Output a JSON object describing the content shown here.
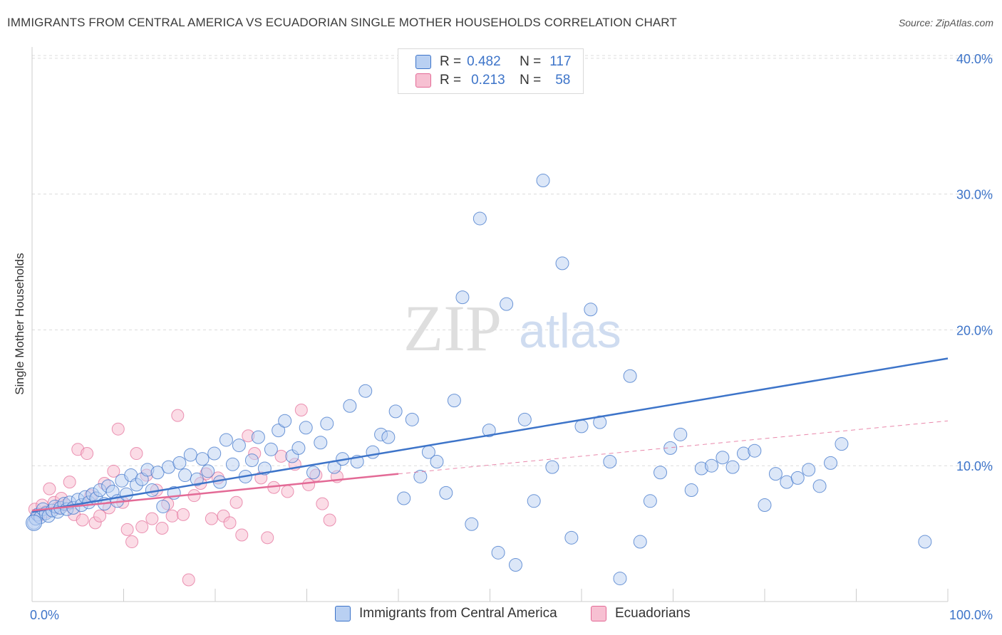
{
  "title": "IMMIGRANTS FROM CENTRAL AMERICA VS ECUADORIAN SINGLE MOTHER HOUSEHOLDS CORRELATION CHART",
  "source": "Source: ZipAtlas.com",
  "watermark": {
    "zip": "ZIP",
    "atlas": "atlas"
  },
  "colors": {
    "blue": "#3d74c9",
    "blue_fill": "#b9d0f2",
    "pink": "#e36a96",
    "pink_fill": "#f7c0d2",
    "grid": "#dcdcdc"
  },
  "legend": {
    "rows": [
      {
        "r_label": "R =",
        "r_value": "0.482",
        "n_label": "N =",
        "n_value": "117"
      },
      {
        "r_label": "R =",
        "r_value": "0.213",
        "n_label": "N =",
        "n_value": "58"
      }
    ]
  },
  "bottom_legend": {
    "series1": "Immigrants from Central America",
    "series2": "Ecuadorians"
  },
  "chart_data": {
    "type": "scatter",
    "title": "IMMIGRANTS FROM CENTRAL AMERICA VS ECUADORIAN SINGLE MOTHER HOUSEHOLDS CORRELATION CHART",
    "xlabel": "",
    "ylabel": "Single Mother Households",
    "xlim": [
      0,
      100
    ],
    "ylim": [
      0,
      40
    ],
    "x_tick_labels": [
      "0.0%",
      "100.0%"
    ],
    "y_ticks": [
      10,
      20,
      30,
      40
    ],
    "y_tick_labels": [
      "10.0%",
      "20.0%",
      "30.0%",
      "40.0%"
    ],
    "grid": true,
    "legend_position": "top-center",
    "series": [
      {
        "name": "Immigrants from Central America",
        "color": "#3d74c9",
        "trend": {
          "x": [
            0,
            100
          ],
          "y": [
            6.6,
            17.9
          ]
        },
        "x": [
          0.2,
          0.4,
          0.6,
          0.9,
          1.2,
          1.5,
          1.8,
          2.2,
          2.5,
          2.8,
          3.1,
          3.5,
          3.8,
          4.1,
          4.5,
          5.0,
          5.4,
          5.8,
          6.2,
          6.6,
          7.0,
          7.4,
          7.9,
          8.3,
          8.8,
          9.3,
          9.8,
          10.3,
          10.8,
          11.4,
          12.0,
          12.6,
          13.1,
          13.7,
          14.3,
          14.9,
          15.5,
          16.1,
          16.7,
          17.3,
          18.0,
          18.6,
          19.2,
          19.9,
          20.5,
          21.2,
          21.9,
          22.6,
          23.3,
          24.0,
          24.7,
          25.4,
          26.1,
          26.9,
          27.6,
          28.4,
          29.1,
          29.9,
          30.7,
          31.5,
          32.2,
          33.0,
          33.9,
          34.7,
          35.5,
          36.4,
          37.2,
          38.1,
          38.9,
          39.7,
          40.6,
          41.5,
          42.4,
          43.3,
          44.2,
          45.2,
          46.1,
          47.0,
          48.0,
          48.9,
          49.9,
          50.9,
          51.8,
          52.8,
          53.8,
          54.8,
          55.8,
          56.8,
          57.9,
          58.9,
          60.0,
          61.0,
          62.0,
          63.1,
          64.2,
          65.3,
          66.4,
          67.5,
          68.6,
          69.7,
          70.8,
          72.0,
          73.1,
          74.2,
          75.4,
          76.5,
          77.7,
          78.9,
          80.0,
          81.2,
          82.4,
          83.6,
          84.8,
          86.0,
          87.2,
          88.4,
          97.5
        ],
        "y": [
          5.8,
          6.1,
          6.4,
          6.2,
          6.8,
          6.5,
          6.3,
          6.7,
          7.0,
          6.6,
          6.9,
          7.2,
          6.8,
          7.3,
          6.9,
          7.5,
          7.1,
          7.7,
          7.3,
          7.9,
          7.6,
          8.2,
          7.2,
          8.5,
          8.1,
          7.4,
          8.9,
          7.9,
          9.3,
          8.6,
          9.0,
          9.7,
          8.2,
          9.5,
          7.0,
          9.9,
          8.0,
          10.2,
          9.3,
          10.8,
          9.0,
          10.5,
          9.6,
          10.9,
          8.8,
          11.9,
          10.1,
          11.5,
          9.2,
          10.4,
          12.1,
          9.8,
          11.2,
          12.6,
          13.3,
          10.7,
          11.3,
          12.8,
          9.5,
          11.7,
          13.1,
          9.9,
          10.5,
          14.4,
          10.3,
          15.5,
          11.0,
          12.3,
          12.1,
          14.0,
          7.6,
          13.4,
          9.2,
          11.0,
          10.3,
          8.0,
          14.8,
          22.4,
          5.7,
          28.2,
          12.6,
          3.6,
          21.9,
          2.7,
          13.4,
          7.4,
          31.0,
          9.9,
          24.9,
          4.7,
          12.9,
          21.5,
          13.2,
          10.3,
          1.7,
          16.6,
          4.4,
          7.4,
          9.5,
          11.3,
          12.3,
          8.2,
          9.8,
          10.0,
          10.6,
          9.9,
          10.9,
          11.1,
          7.1,
          9.4,
          8.8,
          9.1,
          9.7,
          8.5,
          10.2,
          11.6,
          4.4
        ]
      },
      {
        "name": "Ecuadorians",
        "color": "#e36a96",
        "trend": {
          "x": [
            0,
            40
          ],
          "y": [
            6.7,
            9.4
          ]
        },
        "trend_extension": {
          "x": [
            40,
            100
          ],
          "y": [
            9.4,
            13.3
          ]
        },
        "x": [
          0.3,
          0.7,
          1.1,
          1.5,
          1.9,
          2.4,
          2.8,
          3.2,
          3.7,
          4.1,
          4.6,
          5.0,
          5.5,
          6.0,
          6.4,
          6.9,
          7.4,
          7.9,
          8.4,
          8.9,
          9.4,
          9.9,
          10.4,
          10.9,
          11.4,
          12.0,
          12.5,
          13.1,
          13.6,
          14.2,
          14.8,
          15.3,
          15.9,
          16.5,
          17.1,
          17.7,
          18.4,
          19.0,
          19.6,
          20.3,
          20.9,
          21.6,
          22.3,
          22.9,
          23.6,
          24.3,
          25.0,
          25.7,
          26.4,
          27.2,
          27.9,
          28.7,
          29.4,
          30.2,
          31.0,
          31.7,
          32.5,
          33.3
        ],
        "y": [
          6.8,
          6.3,
          7.1,
          6.6,
          8.3,
          7.3,
          6.9,
          7.6,
          7.1,
          8.8,
          6.4,
          11.2,
          6.0,
          10.9,
          7.8,
          5.8,
          6.3,
          8.7,
          6.9,
          9.6,
          12.7,
          7.3,
          5.3,
          4.4,
          10.9,
          5.5,
          9.3,
          6.1,
          8.2,
          5.4,
          7.2,
          6.3,
          13.7,
          6.4,
          1.6,
          7.8,
          8.7,
          9.4,
          6.1,
          9.1,
          6.3,
          5.8,
          7.3,
          4.9,
          12.2,
          10.9,
          9.1,
          4.7,
          8.4,
          10.7,
          8.1,
          10.1,
          14.1,
          8.6,
          9.3,
          7.2,
          6.0,
          9.2
        ]
      }
    ]
  }
}
